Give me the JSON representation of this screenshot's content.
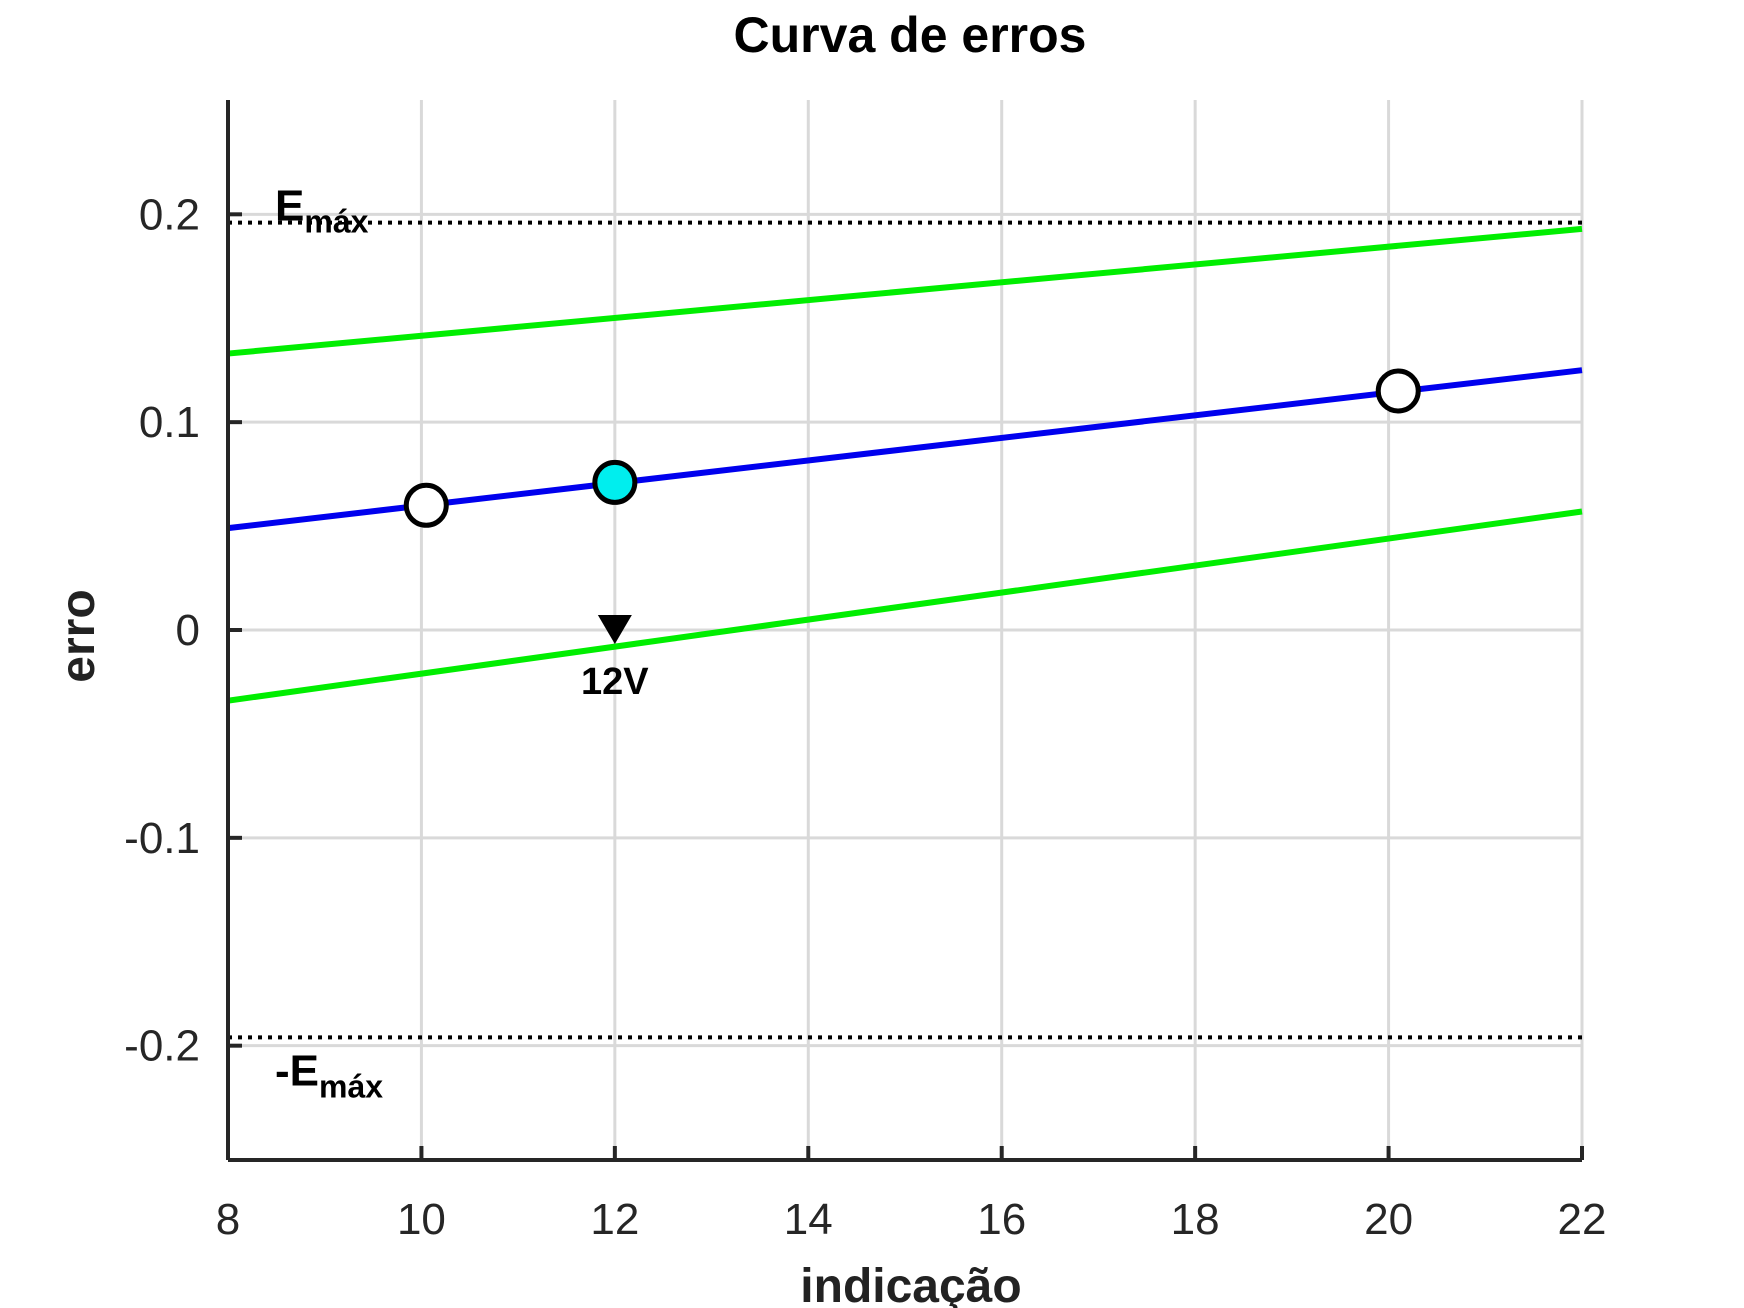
{
  "chart_data": {
    "type": "line",
    "title": "Curva de erros",
    "xlabel": "indicação",
    "ylabel": "erro",
    "xlim": [
      8,
      22
    ],
    "ylim": [
      -0.255,
      0.255
    ],
    "xticks": [
      8,
      10,
      12,
      14,
      16,
      18,
      20,
      22
    ],
    "xtick_labels": [
      "8",
      "10",
      "12",
      "14",
      "16",
      "18",
      "20",
      "22"
    ],
    "yticks": [
      -0.2,
      -0.1,
      0,
      0.1,
      0.2
    ],
    "ytick_labels": [
      "-0.2",
      "-0.1",
      "0",
      "0.1",
      "0.2"
    ],
    "grid": true,
    "series": [
      {
        "role": "fit",
        "color": "#0000ee",
        "x": [
          8,
          22
        ],
        "y": [
          0.049,
          0.125
        ]
      },
      {
        "role": "upper-band",
        "color": "#00ee00",
        "x": [
          8,
          22
        ],
        "y": [
          0.133,
          0.193
        ]
      },
      {
        "role": "lower-band",
        "color": "#00ee00",
        "x": [
          8,
          22
        ],
        "y": [
          -0.034,
          0.057
        ]
      }
    ],
    "points": [
      {
        "x": 10.05,
        "y": 0.06,
        "fill": "#ffffff"
      },
      {
        "x": 12,
        "y": 0.071,
        "fill": "#00eeee"
      },
      {
        "x": 20.1,
        "y": 0.115,
        "fill": "#ffffff"
      }
    ],
    "limits": [
      {
        "y": 0.196,
        "label_main": "E",
        "label_sub": "máx",
        "label_position": "above"
      },
      {
        "y": -0.196,
        "label_main": "-E",
        "label_sub": "máx",
        "label_position": "below"
      }
    ],
    "marker": {
      "x": 12,
      "y": 0,
      "label": "12V",
      "symbol": "down-triangle"
    }
  }
}
